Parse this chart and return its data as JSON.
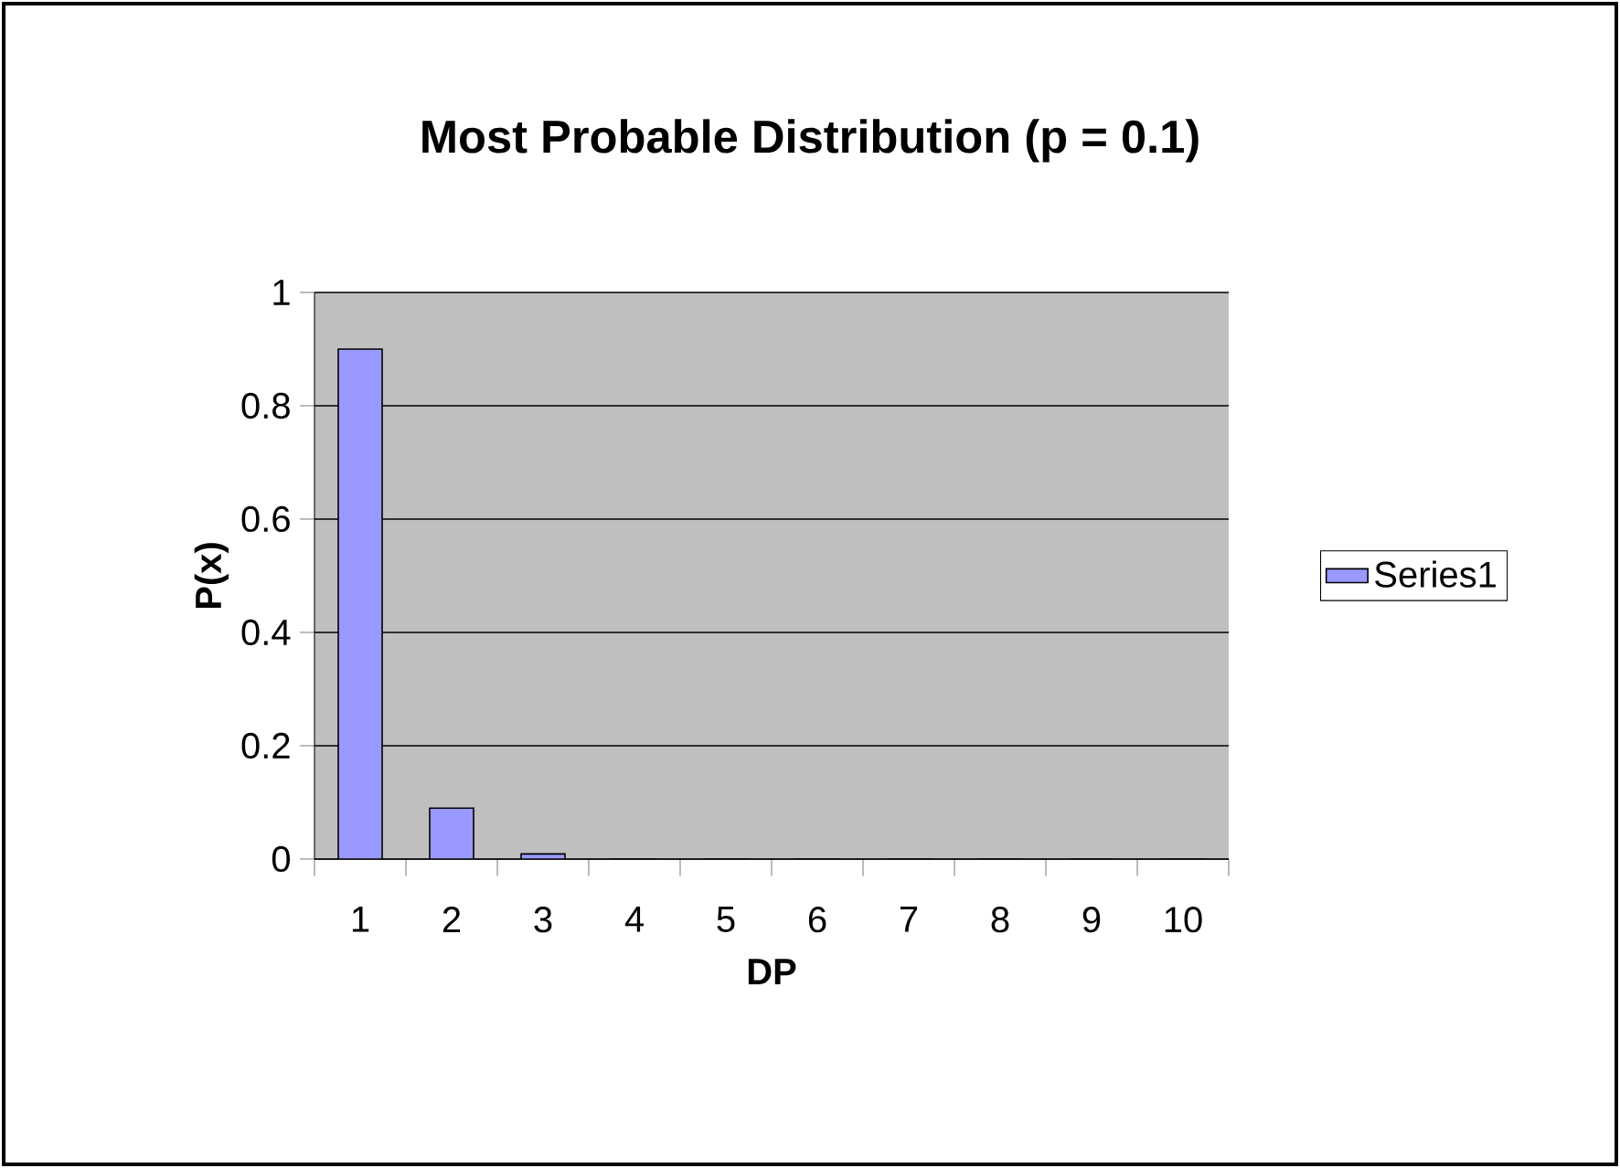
{
  "chart_data": {
    "type": "bar",
    "title": "Most Probable Distribution (p = 0.1)",
    "xlabel": "DP",
    "ylabel": "P(x)",
    "categories": [
      "1",
      "2",
      "3",
      "4",
      "5",
      "6",
      "7",
      "8",
      "9",
      "10"
    ],
    "series": [
      {
        "name": "Series1",
        "color": "#9999ff",
        "values": [
          0.9,
          0.09,
          0.009,
          0,
          0,
          0,
          0,
          0,
          0,
          0
        ]
      }
    ],
    "ylim": [
      0,
      1
    ],
    "yticks": [
      0,
      0.2,
      0.4,
      0.6,
      0.8,
      1
    ],
    "grid": "y",
    "legend": "right"
  }
}
